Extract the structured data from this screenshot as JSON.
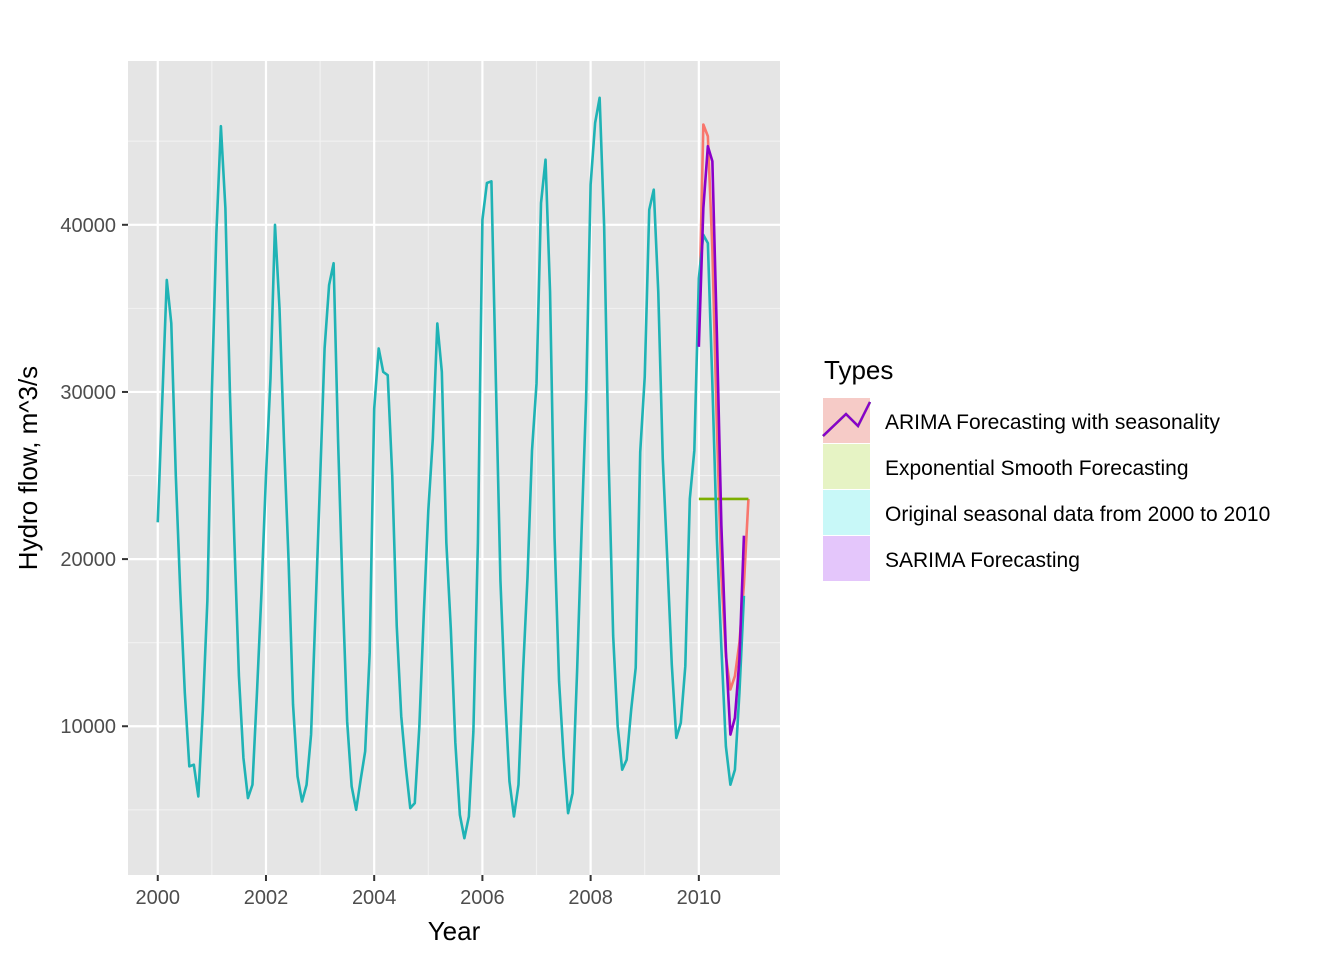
{
  "chart_data": {
    "type": "line",
    "title": "",
    "xlabel": "Year",
    "ylabel": "Hydro flow, m^3/s",
    "xlim": [
      1999.45,
      2011.5
    ],
    "ylim": [
      1100,
      49800
    ],
    "x_ticks": [
      2000,
      2002,
      2004,
      2006,
      2008,
      2010
    ],
    "x_tick_labels": [
      "2000",
      "2002",
      "2004",
      "2006",
      "2008",
      "2010"
    ],
    "y_ticks": [
      10000,
      20000,
      30000,
      40000
    ],
    "y_tick_labels": [
      "10000",
      "20000",
      "30000",
      "40000"
    ],
    "grid": true,
    "background": "#e5e5e5",
    "legend": {
      "title": "Types",
      "position": "right"
    },
    "series": [
      {
        "name": "ARIMA Forecasting with seasonality",
        "color": "#f8766d",
        "start": 2010,
        "step": 0.0833333,
        "values": [
          33800,
          46000,
          45300,
          38500,
          28000,
          19000,
          14200,
          12200,
          13000,
          15000,
          18500,
          23600
        ]
      },
      {
        "name": "Exponential Smooth Forecasting",
        "color": "#7cae00",
        "start": 2010,
        "step": 0.0833333,
        "values": [
          23600,
          23600,
          23600,
          23600,
          23600,
          23600,
          23600,
          23600,
          23600,
          23600,
          23600,
          23600
        ]
      },
      {
        "name": "Original seasonal data from 2000 to 2010",
        "color": "#1fb3b5",
        "start": 2000,
        "step": 0.0833333,
        "values": [
          22200,
          29500,
          36700,
          34100,
          25000,
          18000,
          12000,
          7600,
          7700,
          5800,
          11000,
          17500,
          30000,
          39500,
          45900,
          41000,
          30000,
          21000,
          13000,
          8100,
          5700,
          6500,
          12000,
          18000,
          25000,
          30800,
          40000,
          35000,
          27000,
          20000,
          11300,
          7000,
          5500,
          6500,
          9500,
          17000,
          24700,
          32600,
          36400,
          37700,
          27000,
          18000,
          10300,
          6400,
          5000,
          6800,
          8500,
          14400,
          29000,
          32600,
          31200,
          31000,
          25000,
          16000,
          10600,
          7600,
          5100,
          5400,
          9900,
          16700,
          22900,
          27200,
          34100,
          31200,
          21000,
          15800,
          9000,
          4700,
          3300,
          4600,
          9700,
          21000,
          40300,
          42500,
          42600,
          30500,
          18700,
          11900,
          6700,
          4600,
          6500,
          13200,
          18900,
          26500,
          30500,
          41300,
          43900,
          36000,
          21300,
          12700,
          8200,
          4800,
          6000,
          13300,
          21700,
          29600,
          42400,
          46100,
          47600,
          39900,
          25900,
          15400,
          10000,
          7400,
          8000,
          11000,
          13500,
          26400,
          30900,
          40900,
          42100,
          36000,
          26000,
          20000,
          13700,
          9300,
          10200,
          13600,
          23600,
          26500,
          36800,
          39400,
          38900,
          30500,
          21200,
          14700,
          8800,
          6500,
          7400,
          12000,
          17800
        ]
      },
      {
        "name": "SARIMA Forecasting",
        "color": "#c77cff",
        "line_color": "#8b00c9",
        "start": 2010,
        "step": 0.0833333,
        "values": [
          32700,
          41000,
          44700,
          43800,
          33500,
          22000,
          14500,
          9500,
          10500,
          14000,
          21400
        ]
      }
    ]
  }
}
